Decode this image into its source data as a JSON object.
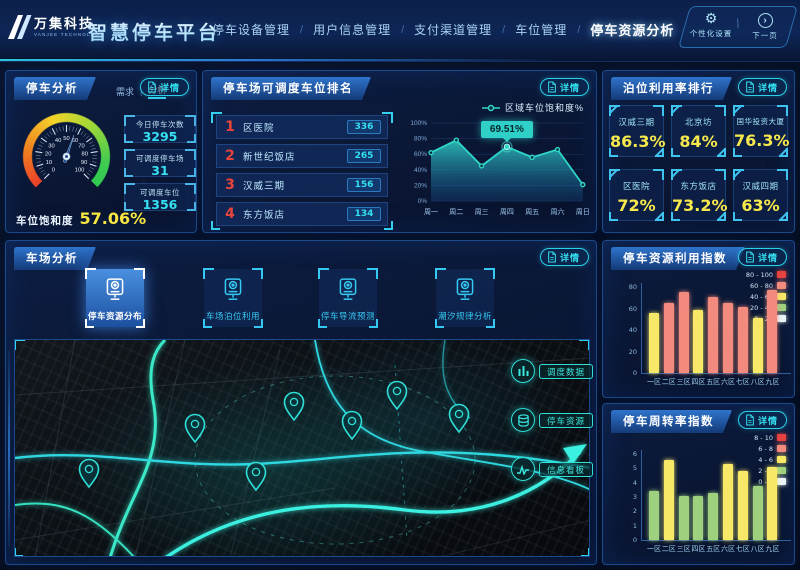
{
  "header": {
    "logo_cn": "万集科技",
    "logo_en": "VANJEE TECHNOLOGY",
    "app_title": "智慧停车平台",
    "nav_separator": "/",
    "controls_separator": "\\",
    "nav": [
      {
        "label": "停车设备管理",
        "active": false
      },
      {
        "label": "用户信息管理",
        "active": false
      },
      {
        "label": "支付渠道管理",
        "active": false
      },
      {
        "label": "车位管理",
        "active": false
      },
      {
        "label": "停车资源分析",
        "active": true
      }
    ],
    "controls": [
      {
        "label": "个性化设置",
        "icon": "gear-icon",
        "glyph": "⚙"
      },
      {
        "label": "下一页",
        "icon": "next-page-icon",
        "glyph": "›"
      }
    ]
  },
  "detail_label": "详情",
  "parking_analysis": {
    "title": "停车分析",
    "tabs": [
      "需求",
      "分析"
    ],
    "tab_separator": "|",
    "gauge_label": "车位饱和度",
    "gauge_value": "57.06%",
    "gauge_percent": 57.06,
    "stats": [
      {
        "label": "今日停车次数",
        "value": "3295"
      },
      {
        "label": "可调度停车场",
        "value": "31"
      },
      {
        "label": "可调度车位",
        "value": "1356"
      }
    ]
  },
  "dispatch_ranking": {
    "title": "停车场可调度车位排名",
    "items": [
      {
        "rank": "1",
        "name": "区医院",
        "value": "336"
      },
      {
        "rank": "2",
        "name": "新世纪饭店",
        "value": "265"
      },
      {
        "rank": "3",
        "name": "汉威三期",
        "value": "156"
      },
      {
        "rank": "4",
        "name": "东方饭店",
        "value": "134"
      }
    ]
  },
  "utilization_ranking": {
    "title": "泊位利用率排行",
    "cards": [
      {
        "name": "汉威三期",
        "value": "86.3%"
      },
      {
        "name": "北京坊",
        "value": "84%"
      },
      {
        "name": "国华投资大厦",
        "value": "76.3%"
      },
      {
        "name": "区医院",
        "value": "72%"
      },
      {
        "name": "东方饭店",
        "value": "73.2%"
      },
      {
        "name": "汉威四期",
        "value": "63%"
      }
    ]
  },
  "lot_analysis": {
    "title": "车场分析",
    "buttons": [
      {
        "label": "停车资源分布",
        "icon": "parking-meter-icon",
        "active": true
      },
      {
        "label": "车场泊位利用",
        "icon": "parking-meter-icon",
        "active": false
      },
      {
        "label": "停车导流预测",
        "icon": "parking-meter-icon",
        "active": false
      },
      {
        "label": "潮汐规律分析",
        "icon": "parking-meter-icon",
        "active": false
      }
    ],
    "map_buttons": [
      {
        "label": "调度数据",
        "icon": "bar-chart-icon"
      },
      {
        "label": "停车资源",
        "icon": "database-icon"
      },
      {
        "label": "信息看板",
        "icon": "trend-icon"
      }
    ]
  },
  "chart_data": [
    {
      "id": "saturation_trend",
      "type": "area",
      "legend": "区域车位饱和度%",
      "x": [
        "周一",
        "周二",
        "周三",
        "周四",
        "周五",
        "周六",
        "周日"
      ],
      "values": [
        62,
        78,
        45,
        69.51,
        56,
        66,
        21
      ],
      "highlight_index": 3,
      "tooltip": "69.51%",
      "ylim": [
        0,
        100
      ],
      "yticks": [
        "0%",
        "20%",
        "40%",
        "60%",
        "80%",
        "100%"
      ],
      "line_color": "#2fd6c9"
    },
    {
      "id": "resource_index",
      "type": "bar",
      "title": "停车资源利用指数",
      "categories": [
        "一区",
        "二区",
        "三区",
        "四区",
        "五区",
        "六区",
        "七区",
        "八区",
        "九区"
      ],
      "values": [
        56,
        65,
        75,
        59,
        71,
        65,
        61,
        51,
        77
      ],
      "ylim": [
        0,
        80
      ],
      "yticks": [
        0,
        20,
        40,
        60,
        80
      ],
      "legend": [
        {
          "label": "80 - 100",
          "color": "#e64340"
        },
        {
          "label": "60 - 80",
          "color": "#f28b7d"
        },
        {
          "label": "40 - 60",
          "color": "#f7e967"
        },
        {
          "label": "20 - 40",
          "color": "#9fd07e"
        },
        {
          "label": "0 - 20",
          "color": "#e8f4f8"
        }
      ]
    },
    {
      "id": "turnover_index",
      "type": "bar",
      "title": "停车周转率指数",
      "categories": [
        "一区",
        "二区",
        "三区",
        "四区",
        "五区",
        "六区",
        "七区",
        "八区",
        "九区"
      ],
      "values": [
        3.4,
        5.6,
        3.1,
        3.1,
        3.3,
        5.3,
        4.8,
        3.8,
        5.1
      ],
      "ylim": [
        0,
        6
      ],
      "yticks": [
        0,
        1,
        2,
        3,
        4,
        5,
        6
      ],
      "legend": [
        {
          "label": "8 - 10",
          "color": "#e64340"
        },
        {
          "label": "6 - 8",
          "color": "#f28b7d"
        },
        {
          "label": "4 - 6",
          "color": "#f7e967"
        },
        {
          "label": "2 - 4",
          "color": "#9fd07e"
        },
        {
          "label": "0 - 2",
          "color": "#e8f4f8"
        }
      ]
    }
  ],
  "colors": {
    "accent_cyan": "#35e0f0",
    "accent_teal": "#2fe0d8",
    "accent_yellow": "#f7e641",
    "rank_red": "#e8443a",
    "panel_border": "#1c4a8c"
  }
}
